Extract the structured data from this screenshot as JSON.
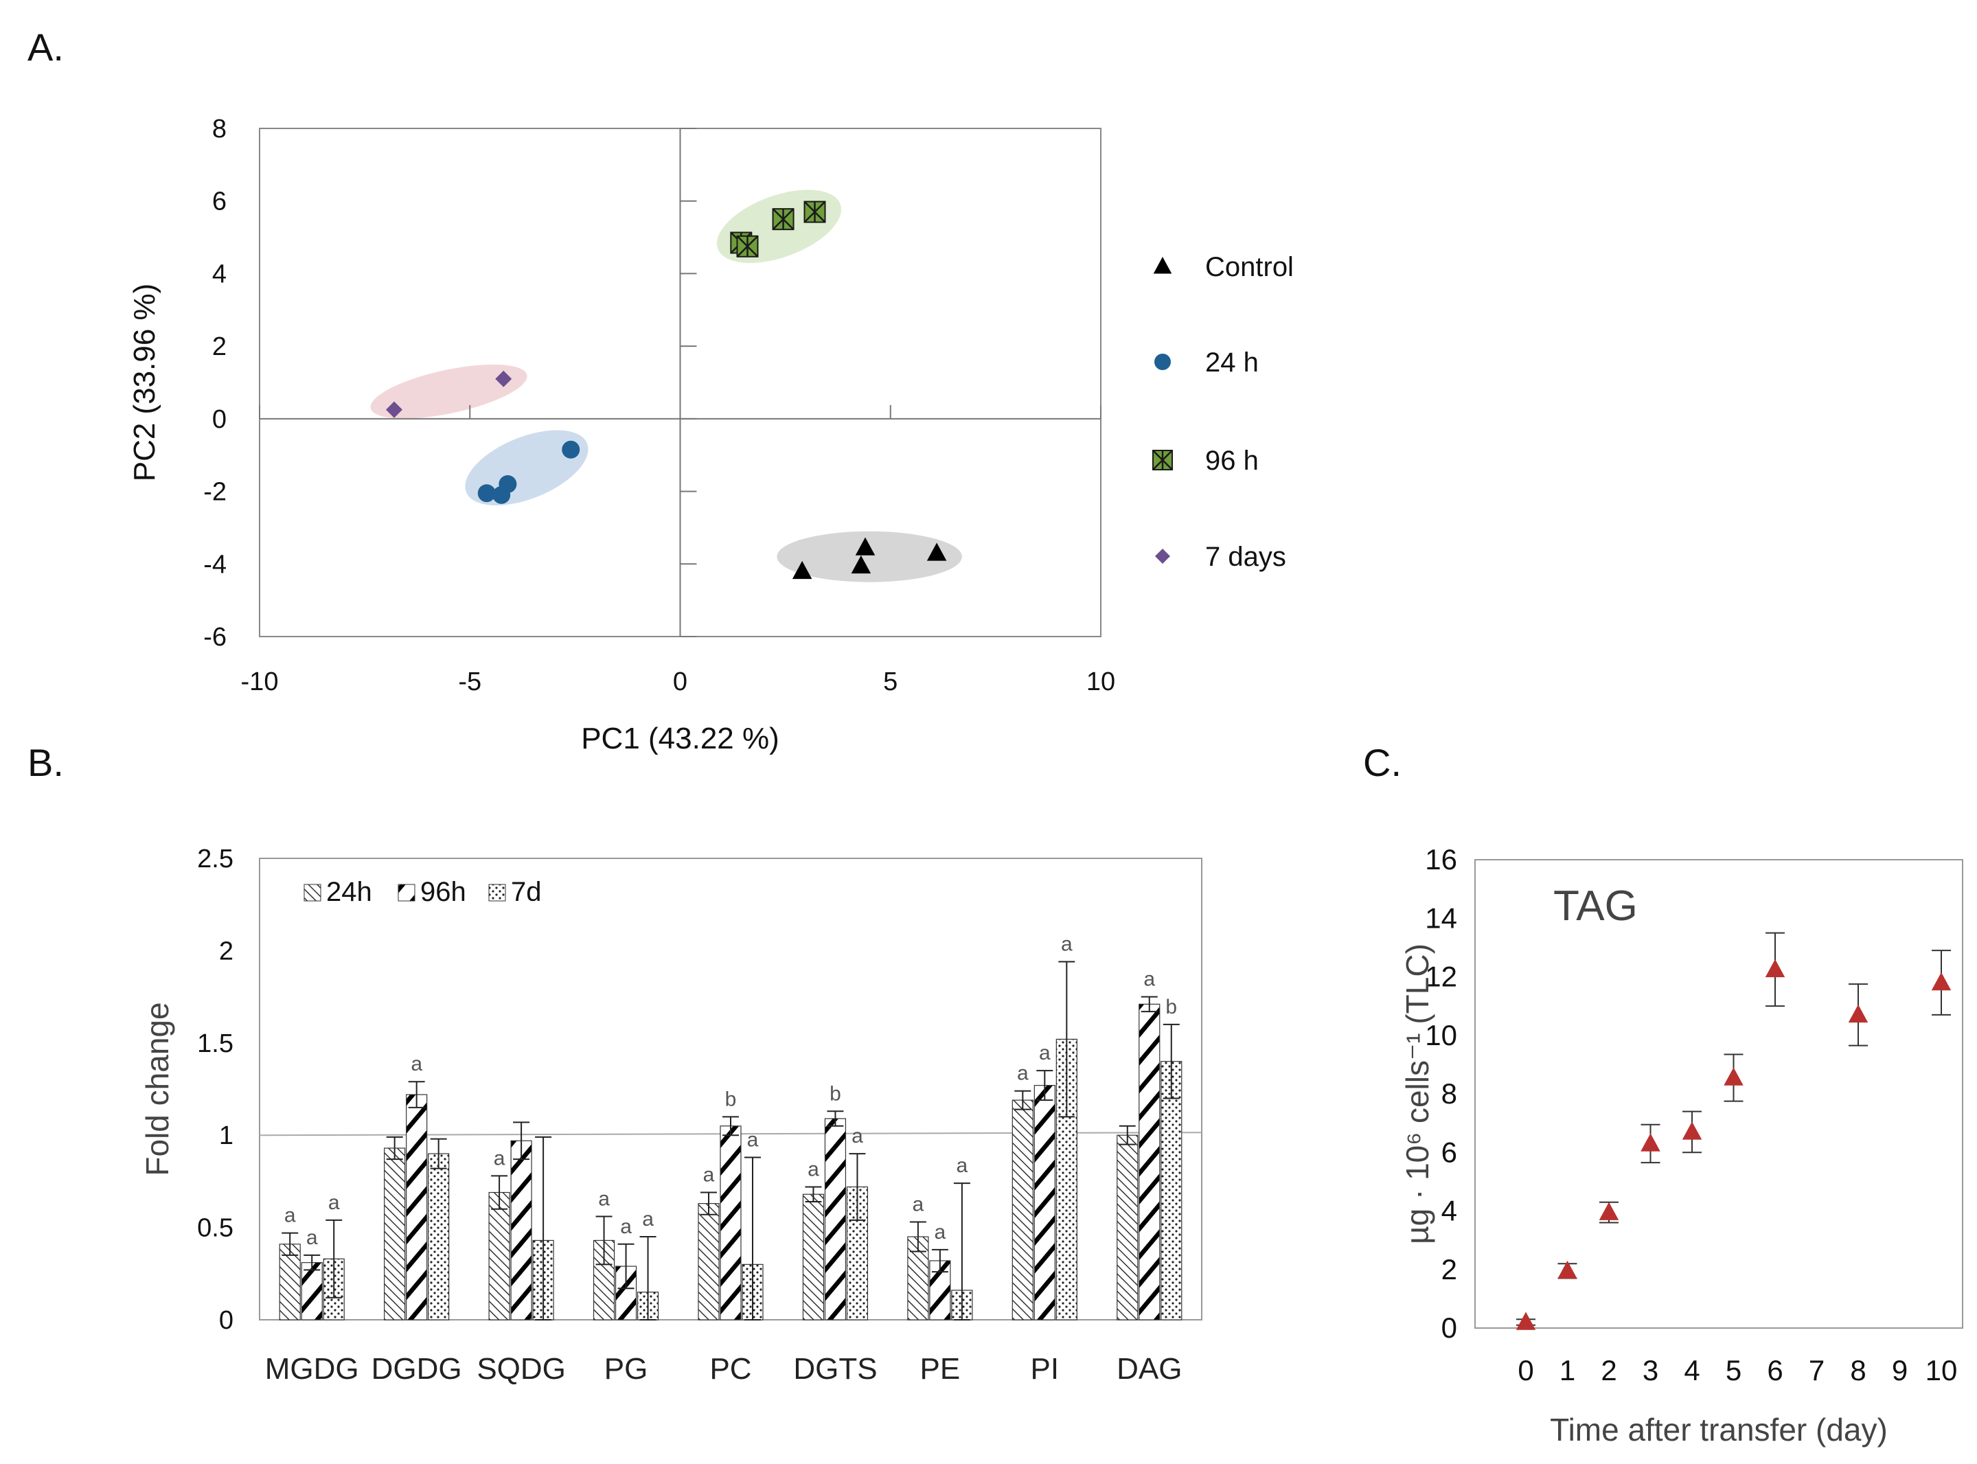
{
  "panels": {
    "a_label": "A.",
    "b_label": "B.",
    "c_label": "C."
  },
  "colors": {
    "control": "#000000",
    "h24": "#1f5f94",
    "h96": "#6f9e3a",
    "d7": "#6d4e8e",
    "tag": "#b8312f",
    "ellipse_control": "#c8c8c8",
    "ellipse_24h": "#bcd0e6",
    "ellipse_96h": "#d2e4c2",
    "ellipse_7d": "#eec9ce"
  },
  "chart_data": [
    {
      "id": "A",
      "type": "scatter",
      "title": "",
      "xlabel": "PC1 (43.22 %)",
      "ylabel": "PC2 (33.96 %)",
      "xlim": [
        -10,
        10
      ],
      "ylim": [
        -6,
        8
      ],
      "xticks": [
        -10,
        -5,
        0,
        5,
        10
      ],
      "yticks": [
        8,
        6,
        4,
        2,
        0,
        -2,
        -4,
        -6
      ],
      "legend_position": "right",
      "series": [
        {
          "name": "Control",
          "marker": "triangle",
          "color": "#000000",
          "points": [
            [
              2.9,
              -4.2
            ],
            [
              4.3,
              -4.05
            ],
            [
              4.4,
              -3.55
            ],
            [
              6.1,
              -3.7
            ]
          ],
          "ellipse": {
            "cx": 4.5,
            "cy": -3.8,
            "rx": 2.2,
            "ry": 0.7,
            "angle": 0,
            "color": "#c8c8c8"
          }
        },
        {
          "name": "24 h",
          "marker": "circle",
          "color": "#1f5f94",
          "points": [
            [
              -4.6,
              -2.05
            ],
            [
              -4.25,
              -2.1
            ],
            [
              -4.1,
              -1.8
            ],
            [
              -2.6,
              -0.85
            ]
          ],
          "ellipse": {
            "cx": -3.65,
            "cy": -1.35,
            "rx": 1.55,
            "ry": 0.85,
            "angle": -22,
            "color": "#bcd0e6"
          }
        },
        {
          "name": "96 h",
          "marker": "crossed-square",
          "color": "#6f9e3a",
          "points": [
            [
              1.45,
              4.85
            ],
            [
              1.6,
              4.75
            ],
            [
              2.45,
              5.5
            ],
            [
              3.2,
              5.7
            ]
          ],
          "ellipse": {
            "cx": 2.35,
            "cy": 5.3,
            "rx": 1.55,
            "ry": 0.85,
            "angle": -20,
            "color": "#d2e4c2"
          }
        },
        {
          "name": "7 days",
          "marker": "diamond",
          "color": "#6d4e8e",
          "points": [
            [
              -6.8,
              0.25
            ],
            [
              -4.2,
              1.1
            ]
          ],
          "ellipse": {
            "cx": -5.5,
            "cy": 0.75,
            "rx": 1.9,
            "ry": 0.6,
            "angle": -12,
            "color": "#eec9ce"
          }
        }
      ]
    },
    {
      "id": "B",
      "type": "bar",
      "title": "",
      "xlabel": "",
      "ylabel": "Fold change",
      "ylim": [
        0,
        2.5
      ],
      "yticks": [
        "0",
        "0.5",
        "1",
        "1.5",
        "2",
        "2.5"
      ],
      "ytick_values": [
        0,
        0.5,
        1,
        1.5,
        2,
        2.5
      ],
      "reference_line": 1,
      "legend_position": "top-left",
      "categories": [
        "MGDG",
        "DGDG",
        "SQDG",
        "PG",
        "PC",
        "DGTS",
        "PE",
        "PI",
        "DAG"
      ],
      "series": [
        {
          "name": "24h",
          "pattern": "diag-thin",
          "values": [
            0.41,
            0.93,
            0.69,
            0.43,
            0.63,
            0.68,
            0.45,
            1.19,
            1.0
          ],
          "errors": [
            0.06,
            0.06,
            0.09,
            0.13,
            0.06,
            0.04,
            0.08,
            0.05,
            0.05
          ],
          "letters": [
            "a",
            "",
            "a",
            "a",
            "a",
            "a",
            "a",
            "a",
            ""
          ]
        },
        {
          "name": "96h",
          "pattern": "diag-thick",
          "values": [
            0.31,
            1.22,
            0.97,
            0.29,
            1.05,
            1.09,
            0.32,
            1.27,
            1.71
          ],
          "errors": [
            0.04,
            0.07,
            0.1,
            0.12,
            0.05,
            0.04,
            0.06,
            0.08,
            0.04
          ],
          "letters": [
            "a",
            "a",
            "",
            "a",
            "b",
            "b",
            "a",
            "a",
            "a"
          ]
        },
        {
          "name": "7d",
          "pattern": "dots",
          "values": [
            0.33,
            0.9,
            0.43,
            0.15,
            0.3,
            0.72,
            0.16,
            1.52,
            1.4
          ],
          "errors": [
            0.21,
            0.08,
            0.56,
            0.3,
            0.58,
            0.18,
            0.58,
            0.42,
            0.2
          ],
          "letters": [
            "a",
            "",
            "",
            "a",
            "a",
            "a",
            "a",
            "a",
            "b"
          ]
        }
      ]
    },
    {
      "id": "C",
      "type": "scatter",
      "title": "TAG",
      "xlabel": "Time after transfer (day)",
      "ylabel": "µg · 10⁶ cells⁻¹ (TLC)",
      "ylim": [
        0,
        16
      ],
      "yticks": [
        0,
        2,
        4,
        6,
        8,
        10,
        12,
        14,
        16
      ],
      "xcategories": [
        "0",
        "1",
        "2",
        "3",
        "4",
        "5",
        "6",
        "7",
        "8",
        "9",
        "10"
      ],
      "series": [
        {
          "name": "TAG",
          "marker": "triangle",
          "color": "#b8312f",
          "x": [
            "0",
            "1",
            "2",
            "3",
            "4",
            "5",
            "6",
            "8",
            "10"
          ],
          "y": [
            0.2,
            1.95,
            3.95,
            6.3,
            6.7,
            8.55,
            12.25,
            10.7,
            11.8
          ],
          "err": [
            0.1,
            0.25,
            0.35,
            0.65,
            0.7,
            0.8,
            1.25,
            1.05,
            1.1
          ]
        }
      ]
    }
  ]
}
